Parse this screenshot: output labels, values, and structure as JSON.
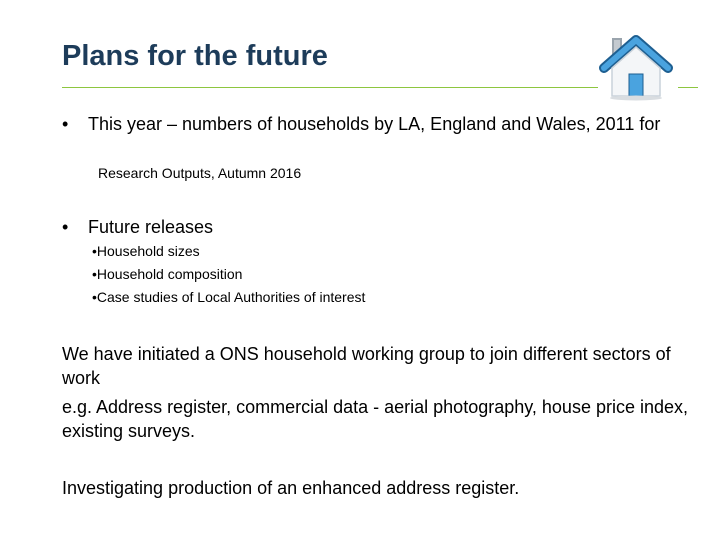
{
  "slide": {
    "title": "Plans for the future",
    "bullets": [
      {
        "marker": "•",
        "text": "This year – numbers of households by LA, England and Wales, 2011 for",
        "sub": "Research Outputs, Autumn 2016"
      },
      {
        "marker": "•",
        "text": "Future releases",
        "subitems": [
          "•Household sizes",
          "•Household composition",
          "•Case studies of Local Authorities of interest"
        ]
      }
    ],
    "paragraphs": [
      "We have initiated a ONS household working group to join different sectors of work",
      "e.g. Address register, commercial data  - aerial photography, house price index, existing surveys.",
      "Investigating production of an enhanced address register."
    ]
  },
  "colors": {
    "title": "#1d3c5a",
    "rule": "#8dc63f",
    "icon_roof": "#3d8fc9",
    "icon_house": "#ffffff"
  },
  "icons": {
    "home": "home-icon"
  }
}
